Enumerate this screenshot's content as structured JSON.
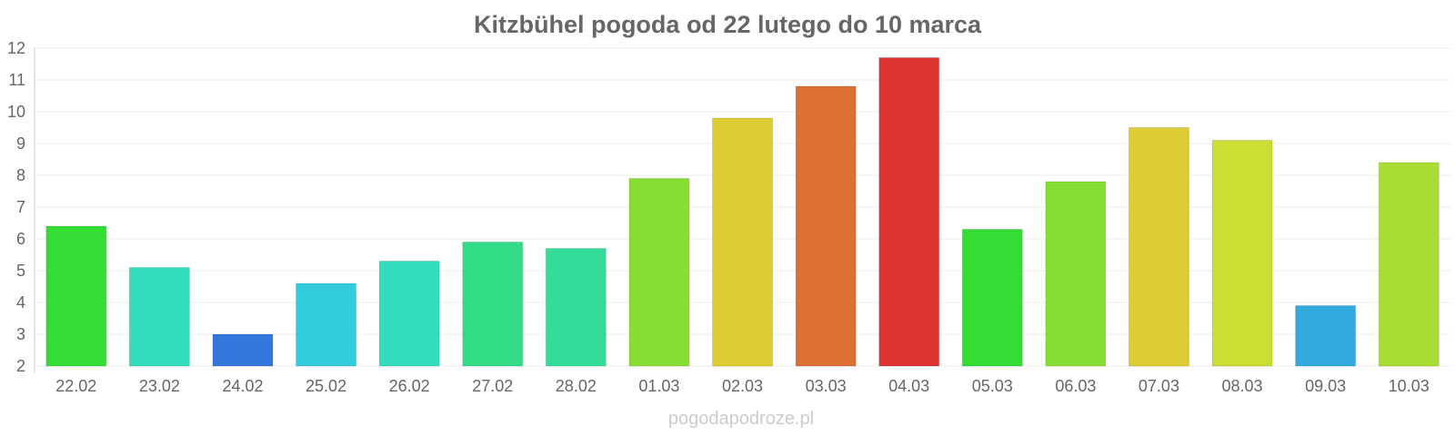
{
  "chart_data": {
    "type": "bar",
    "title": "Kitzbühel pogoda od 22 lutego do 10 marca",
    "categories": [
      "22.02",
      "23.02",
      "24.02",
      "25.02",
      "26.02",
      "27.02",
      "28.02",
      "01.03",
      "02.03",
      "03.03",
      "04.03",
      "05.03",
      "06.03",
      "07.03",
      "08.03",
      "09.03",
      "10.03"
    ],
    "values": [
      6.4,
      5.1,
      3.0,
      4.6,
      5.3,
      5.9,
      5.7,
      7.9,
      9.8,
      10.8,
      11.7,
      6.3,
      7.8,
      9.5,
      9.1,
      3.9,
      8.4
    ],
    "colors": [
      "#33dd33",
      "#33ddbb",
      "#3377dd",
      "#33ccdd",
      "#33ddbb",
      "#33dd88",
      "#33dd99",
      "#88dd33",
      "#ddcc33",
      "#dd7033",
      "#dd3333",
      "#33dd33",
      "#88dd33",
      "#ddcc33",
      "#ccdd33",
      "#33aadd",
      "#aadd33"
    ],
    "ylim": [
      2,
      12
    ],
    "yticks": [
      "2",
      "3",
      "4",
      "5",
      "6",
      "7",
      "8",
      "9",
      "10",
      "11",
      "12"
    ],
    "grid": true,
    "xlabel": "",
    "ylabel": ""
  },
  "watermark": "pogodapodroze.pl"
}
